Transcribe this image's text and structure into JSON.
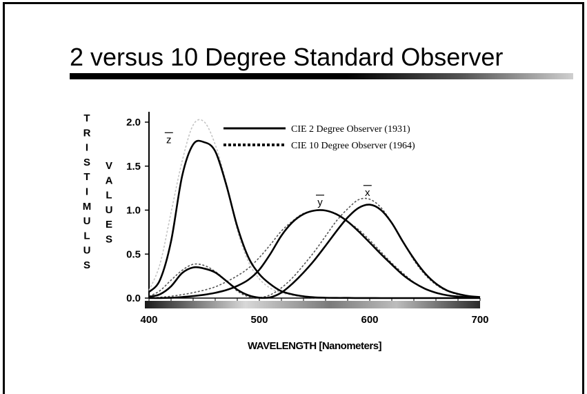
{
  "slide": {
    "title": "2 versus 10 Degree Standard Observer"
  },
  "colors": {
    "curve_2deg": "#000000",
    "curve_10deg": "#555555",
    "curve_10deg_z": "#c4c4c4"
  },
  "chart_data": {
    "type": "line",
    "xlabel": "WAVELENGTH [Nanometers]",
    "ylabel_left": "TRISTIMULUS",
    "ylabel_right": "VALUES",
    "xlim": [
      400,
      700
    ],
    "ylim": [
      0,
      2.0
    ],
    "x_ticks": [
      "400",
      "500",
      "600",
      "700"
    ],
    "y_ticks": [
      "0.0",
      "0.5",
      "1.0",
      "1.5",
      "2.0"
    ],
    "legend": {
      "placement": "top-center",
      "entries": [
        "CIE 2 Degree Observer (1931)",
        "CIE 10 Degree Observer (1964)"
      ]
    },
    "curve_labels": [
      {
        "text": "z",
        "wavelength": 418,
        "value": 1.88
      },
      {
        "text": "y",
        "wavelength": 555,
        "value": 1.17
      },
      {
        "text": "x",
        "wavelength": 598,
        "value": 1.28
      }
    ],
    "x": [
      400,
      410,
      420,
      430,
      440,
      450,
      460,
      470,
      480,
      490,
      500,
      510,
      520,
      530,
      540,
      550,
      560,
      570,
      580,
      590,
      600,
      610,
      620,
      630,
      640,
      650,
      660,
      670,
      680,
      690,
      700
    ],
    "series": [
      {
        "name": "CIE 2 Degree Observer (1931)",
        "component": "x",
        "values": [
          0.014,
          0.044,
          0.134,
          0.284,
          0.348,
          0.336,
          0.291,
          0.195,
          0.096,
          0.032,
          0.005,
          0.009,
          0.063,
          0.165,
          0.29,
          0.433,
          0.595,
          0.762,
          0.916,
          1.026,
          1.062,
          1.003,
          0.854,
          0.642,
          0.448,
          0.284,
          0.165,
          0.087,
          0.047,
          0.023,
          0.011
        ]
      },
      {
        "name": "CIE 2 Degree Observer (1931)",
        "component": "y",
        "values": [
          0.0,
          0.001,
          0.004,
          0.012,
          0.023,
          0.038,
          0.06,
          0.091,
          0.139,
          0.208,
          0.323,
          0.503,
          0.71,
          0.862,
          0.954,
          0.995,
          0.995,
          0.952,
          0.87,
          0.757,
          0.631,
          0.503,
          0.381,
          0.265,
          0.175,
          0.107,
          0.061,
          0.032,
          0.017,
          0.008,
          0.004
        ]
      },
      {
        "name": "CIE 2 Degree Observer (1931)",
        "component": "z",
        "values": [
          0.068,
          0.207,
          0.646,
          1.386,
          1.747,
          1.772,
          1.669,
          1.288,
          0.813,
          0.465,
          0.272,
          0.158,
          0.078,
          0.042,
          0.02,
          0.009,
          0.004,
          0.002,
          0.002,
          0.001,
          0.001,
          0.0,
          0.0,
          0.0,
          0.0,
          0.0,
          0.0,
          0.0,
          0.0,
          0.0,
          0.0
        ]
      },
      {
        "name": "CIE 10 Degree Observer (1964)",
        "component": "x",
        "values": [
          0.019,
          0.085,
          0.204,
          0.315,
          0.384,
          0.371,
          0.302,
          0.196,
          0.081,
          0.016,
          0.004,
          0.038,
          0.117,
          0.23,
          0.375,
          0.53,
          0.705,
          0.879,
          1.014,
          1.119,
          1.124,
          1.031,
          0.856,
          0.647,
          0.432,
          0.268,
          0.153,
          0.082,
          0.041,
          0.02,
          0.01
        ]
      },
      {
        "name": "CIE 10 Degree Observer (1964)",
        "component": "y",
        "values": [
          0.002,
          0.009,
          0.021,
          0.039,
          0.062,
          0.09,
          0.128,
          0.185,
          0.253,
          0.339,
          0.461,
          0.607,
          0.762,
          0.875,
          0.962,
          0.992,
          0.997,
          0.956,
          0.869,
          0.777,
          0.658,
          0.528,
          0.398,
          0.284,
          0.18,
          0.107,
          0.06,
          0.032,
          0.016,
          0.008,
          0.004
        ]
      },
      {
        "name": "CIE 10 Degree Observer (1964)",
        "component": "z",
        "values": [
          0.086,
          0.389,
          0.973,
          1.554,
          1.967,
          2.004,
          1.745,
          1.317,
          0.772,
          0.415,
          0.219,
          0.112,
          0.061,
          0.031,
          0.014,
          0.004,
          0.0,
          0.0,
          0.0,
          0.0,
          0.0,
          0.0,
          0.0,
          0.0,
          0.0,
          0.0,
          0.0,
          0.0,
          0.0,
          0.0,
          0.0
        ]
      }
    ]
  }
}
